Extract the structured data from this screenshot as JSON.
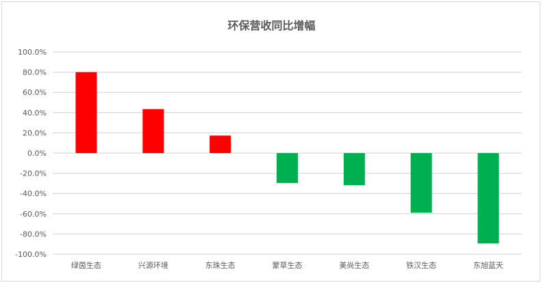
{
  "chart_data": {
    "type": "bar",
    "title": "环保营收同比增幅",
    "categories": [
      "绿茵生态",
      "兴源环境",
      "东珠生态",
      "蒙草生态",
      "美尚生态",
      "铁汉生态",
      "东旭蓝天"
    ],
    "values": [
      80.0,
      43.5,
      17.3,
      -29.6,
      -31.7,
      -59.0,
      -89.4
    ],
    "unit": "%",
    "ylim": [
      -100,
      100
    ],
    "yticks": [
      "100.0%",
      "80.0%",
      "60.0%",
      "40.0%",
      "20.0%",
      "0.0%",
      "-20.0%",
      "-40.0%",
      "-60.0%",
      "-80.0%",
      "-100.0%"
    ],
    "grid": true,
    "colors": {
      "positive": "#ff0000",
      "negative": "#00b050",
      "grid": "#d9d9d9"
    }
  }
}
